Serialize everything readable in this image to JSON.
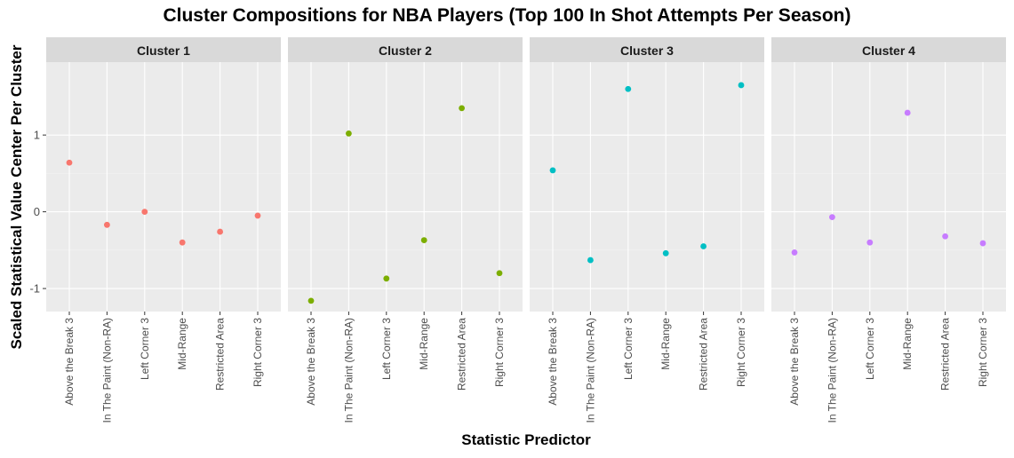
{
  "chart_data": {
    "type": "scatter",
    "title": "Cluster Compositions for NBA Players (Top 100 In Shot Attempts Per Season)",
    "xlabel": "Statistic Predictor",
    "ylabel": "Scaled Statistical Value Center Per Cluster",
    "categories": [
      "Above the Break 3",
      "In The Paint (Non-RA)",
      "Left Corner 3",
      "Mid-Range",
      "Restricted Area",
      "Right Corner 3"
    ],
    "y_ticks": [
      1,
      0,
      -1
    ],
    "y_tick_labels": [
      "1",
      "0",
      "-1"
    ],
    "ylim": [
      -1.3,
      1.95
    ],
    "grid": true,
    "legend": "none",
    "panels": [
      {
        "label": "Cluster 1",
        "color": "#F8766D",
        "values": [
          0.64,
          -0.17,
          0.0,
          -0.4,
          -0.26,
          -0.05
        ]
      },
      {
        "label": "Cluster 2",
        "color": "#7CAE00",
        "values": [
          -1.16,
          1.02,
          -0.87,
          -0.37,
          1.35,
          -0.8
        ]
      },
      {
        "label": "Cluster 3",
        "color": "#00BFC4",
        "values": [
          0.54,
          -0.63,
          1.6,
          -0.54,
          -0.45,
          1.65
        ]
      },
      {
        "label": "Cluster 4",
        "color": "#C77CFF",
        "values": [
          -0.53,
          -0.07,
          -0.4,
          1.29,
          -0.32,
          -0.41
        ]
      }
    ]
  }
}
